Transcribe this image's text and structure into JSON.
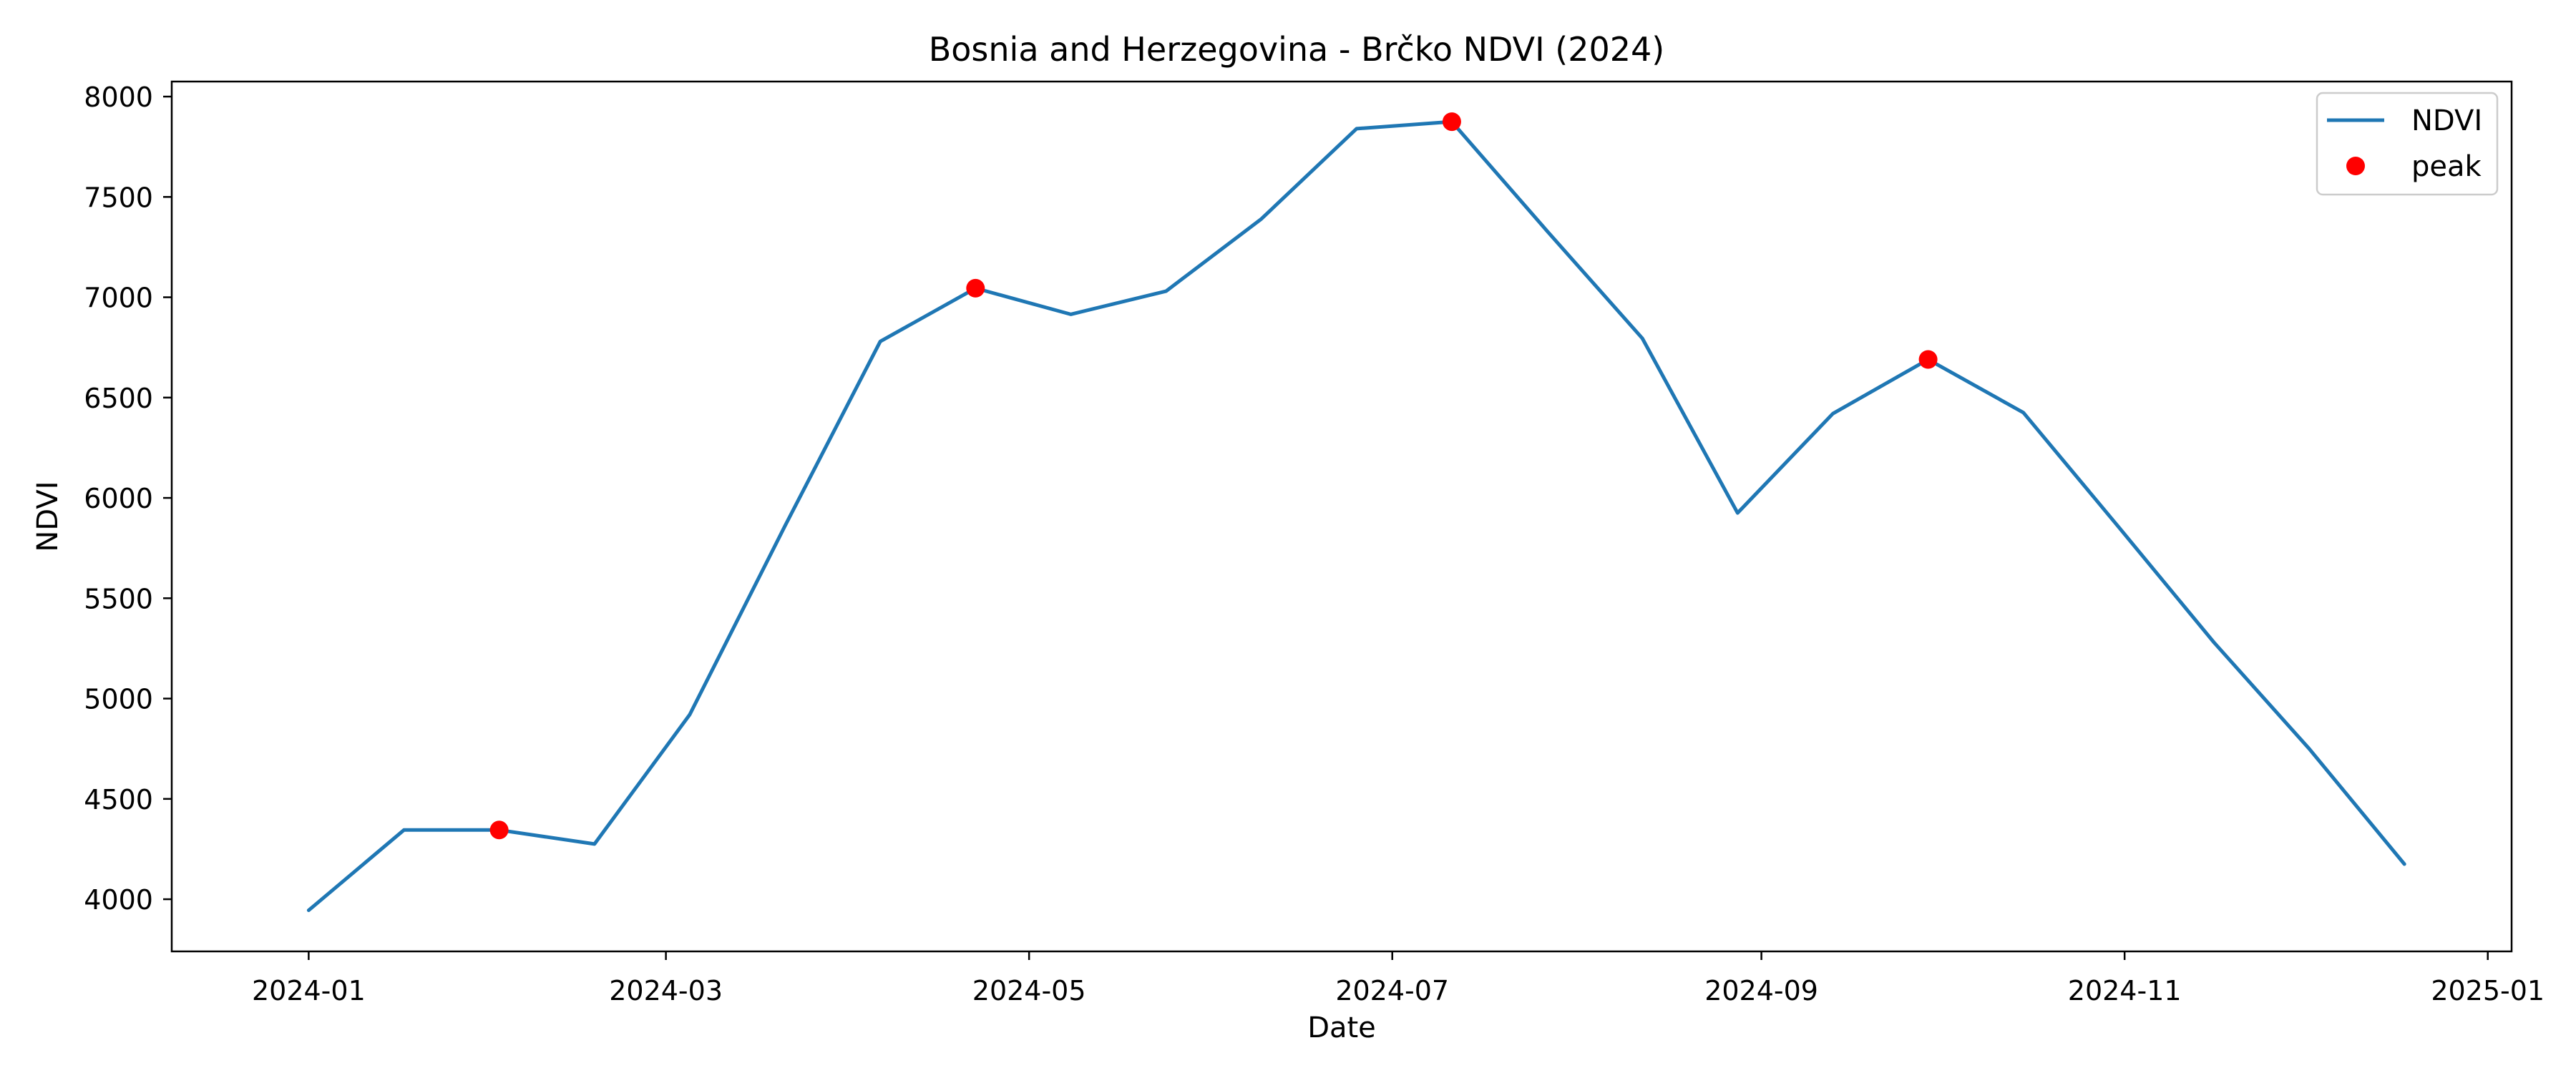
{
  "chart_data": {
    "type": "line",
    "title": "Bosnia and Herzegovina - Brčko NDVI (2024)",
    "xlabel": "Date",
    "ylabel": "NDVI",
    "xlim": [
      "2023-12-09",
      "2025-01-05"
    ],
    "ylim": [
      3740,
      8075
    ],
    "x_ticks": [
      "2024-01",
      "2024-03",
      "2024-05",
      "2024-07",
      "2024-09",
      "2024-11",
      "2025-01"
    ],
    "y_ticks": [
      4000,
      4500,
      5000,
      5500,
      6000,
      6500,
      7000,
      7500,
      8000
    ],
    "grid": false,
    "legend_position": "top-right",
    "colors": {
      "line": "#1f77b4",
      "peak": "#ff0000"
    },
    "series": [
      {
        "name": "NDVI",
        "style": "line",
        "x": [
          "2024-01-01",
          "2024-01-17",
          "2024-02-02",
          "2024-02-18",
          "2024-03-05",
          "2024-03-21",
          "2024-04-06",
          "2024-04-22",
          "2024-05-08",
          "2024-05-24",
          "2024-06-09",
          "2024-06-25",
          "2024-07-11",
          "2024-07-27",
          "2024-08-12",
          "2024-08-28",
          "2024-09-13",
          "2024-09-29",
          "2024-10-15",
          "2024-10-31",
          "2024-11-16",
          "2024-12-02",
          "2024-12-18"
        ],
        "y": [
          3945,
          4345,
          4345,
          4275,
          4920,
          5860,
          6780,
          7045,
          6915,
          7030,
          7390,
          7840,
          7875,
          7330,
          6795,
          5925,
          6420,
          6690,
          6425,
          5855,
          5280,
          4750,
          4175
        ]
      },
      {
        "name": "peak",
        "style": "marker",
        "x": [
          "2024-02-02",
          "2024-04-22",
          "2024-07-11",
          "2024-09-29"
        ],
        "y": [
          4345,
          7045,
          7875,
          6690
        ]
      }
    ]
  }
}
